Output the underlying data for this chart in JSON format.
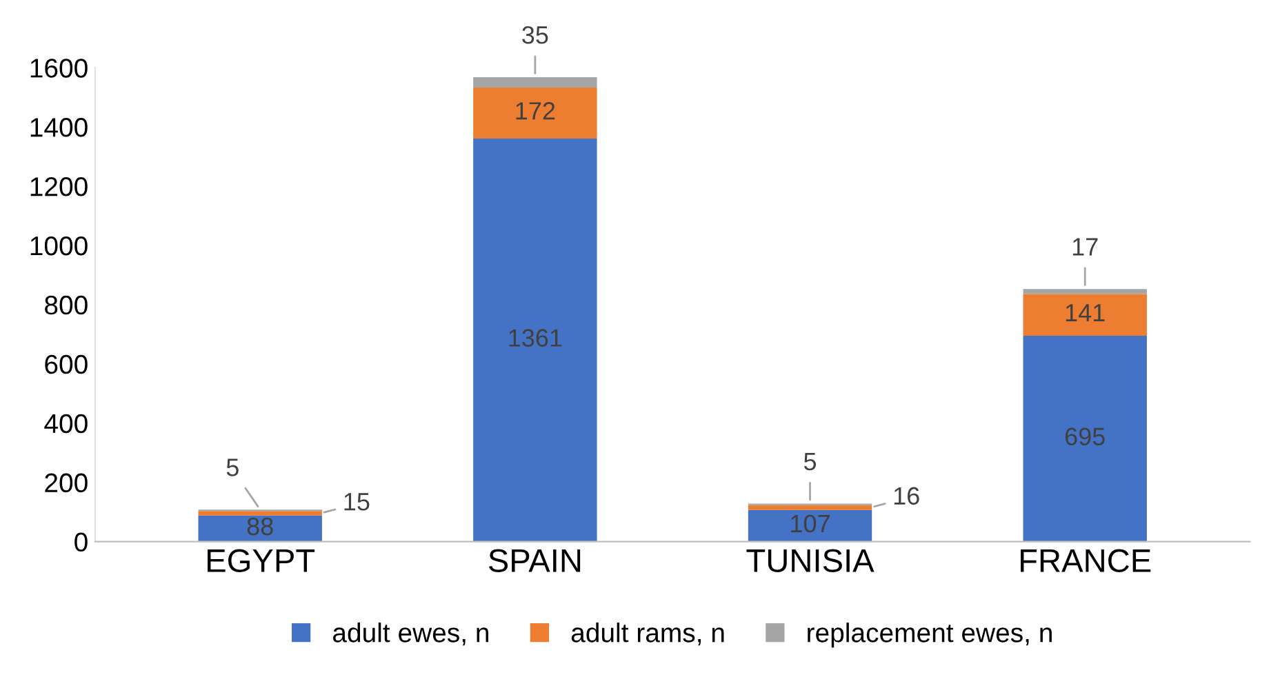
{
  "chart_data": {
    "type": "bar",
    "stacked": true,
    "categories": [
      "EGYPT",
      "SPAIN",
      "TUNISIA",
      "FRANCE"
    ],
    "series": [
      {
        "name": "adult ewes, n",
        "color": "#4472c4",
        "values": [
          88,
          1361,
          107,
          695
        ]
      },
      {
        "name": "adult rams, n",
        "color": "#ed7d31",
        "values": [
          15,
          172,
          16,
          141
        ]
      },
      {
        "name": "replacement ewes, n",
        "color": "#a5a5a5",
        "values": [
          5,
          35,
          5,
          17
        ]
      }
    ],
    "ylim": [
      0,
      1600
    ],
    "yticks": [
      0,
      200,
      400,
      600,
      800,
      1000,
      1200,
      1400,
      1600
    ],
    "grid": false,
    "legend": "bottom",
    "data_labels": true
  }
}
